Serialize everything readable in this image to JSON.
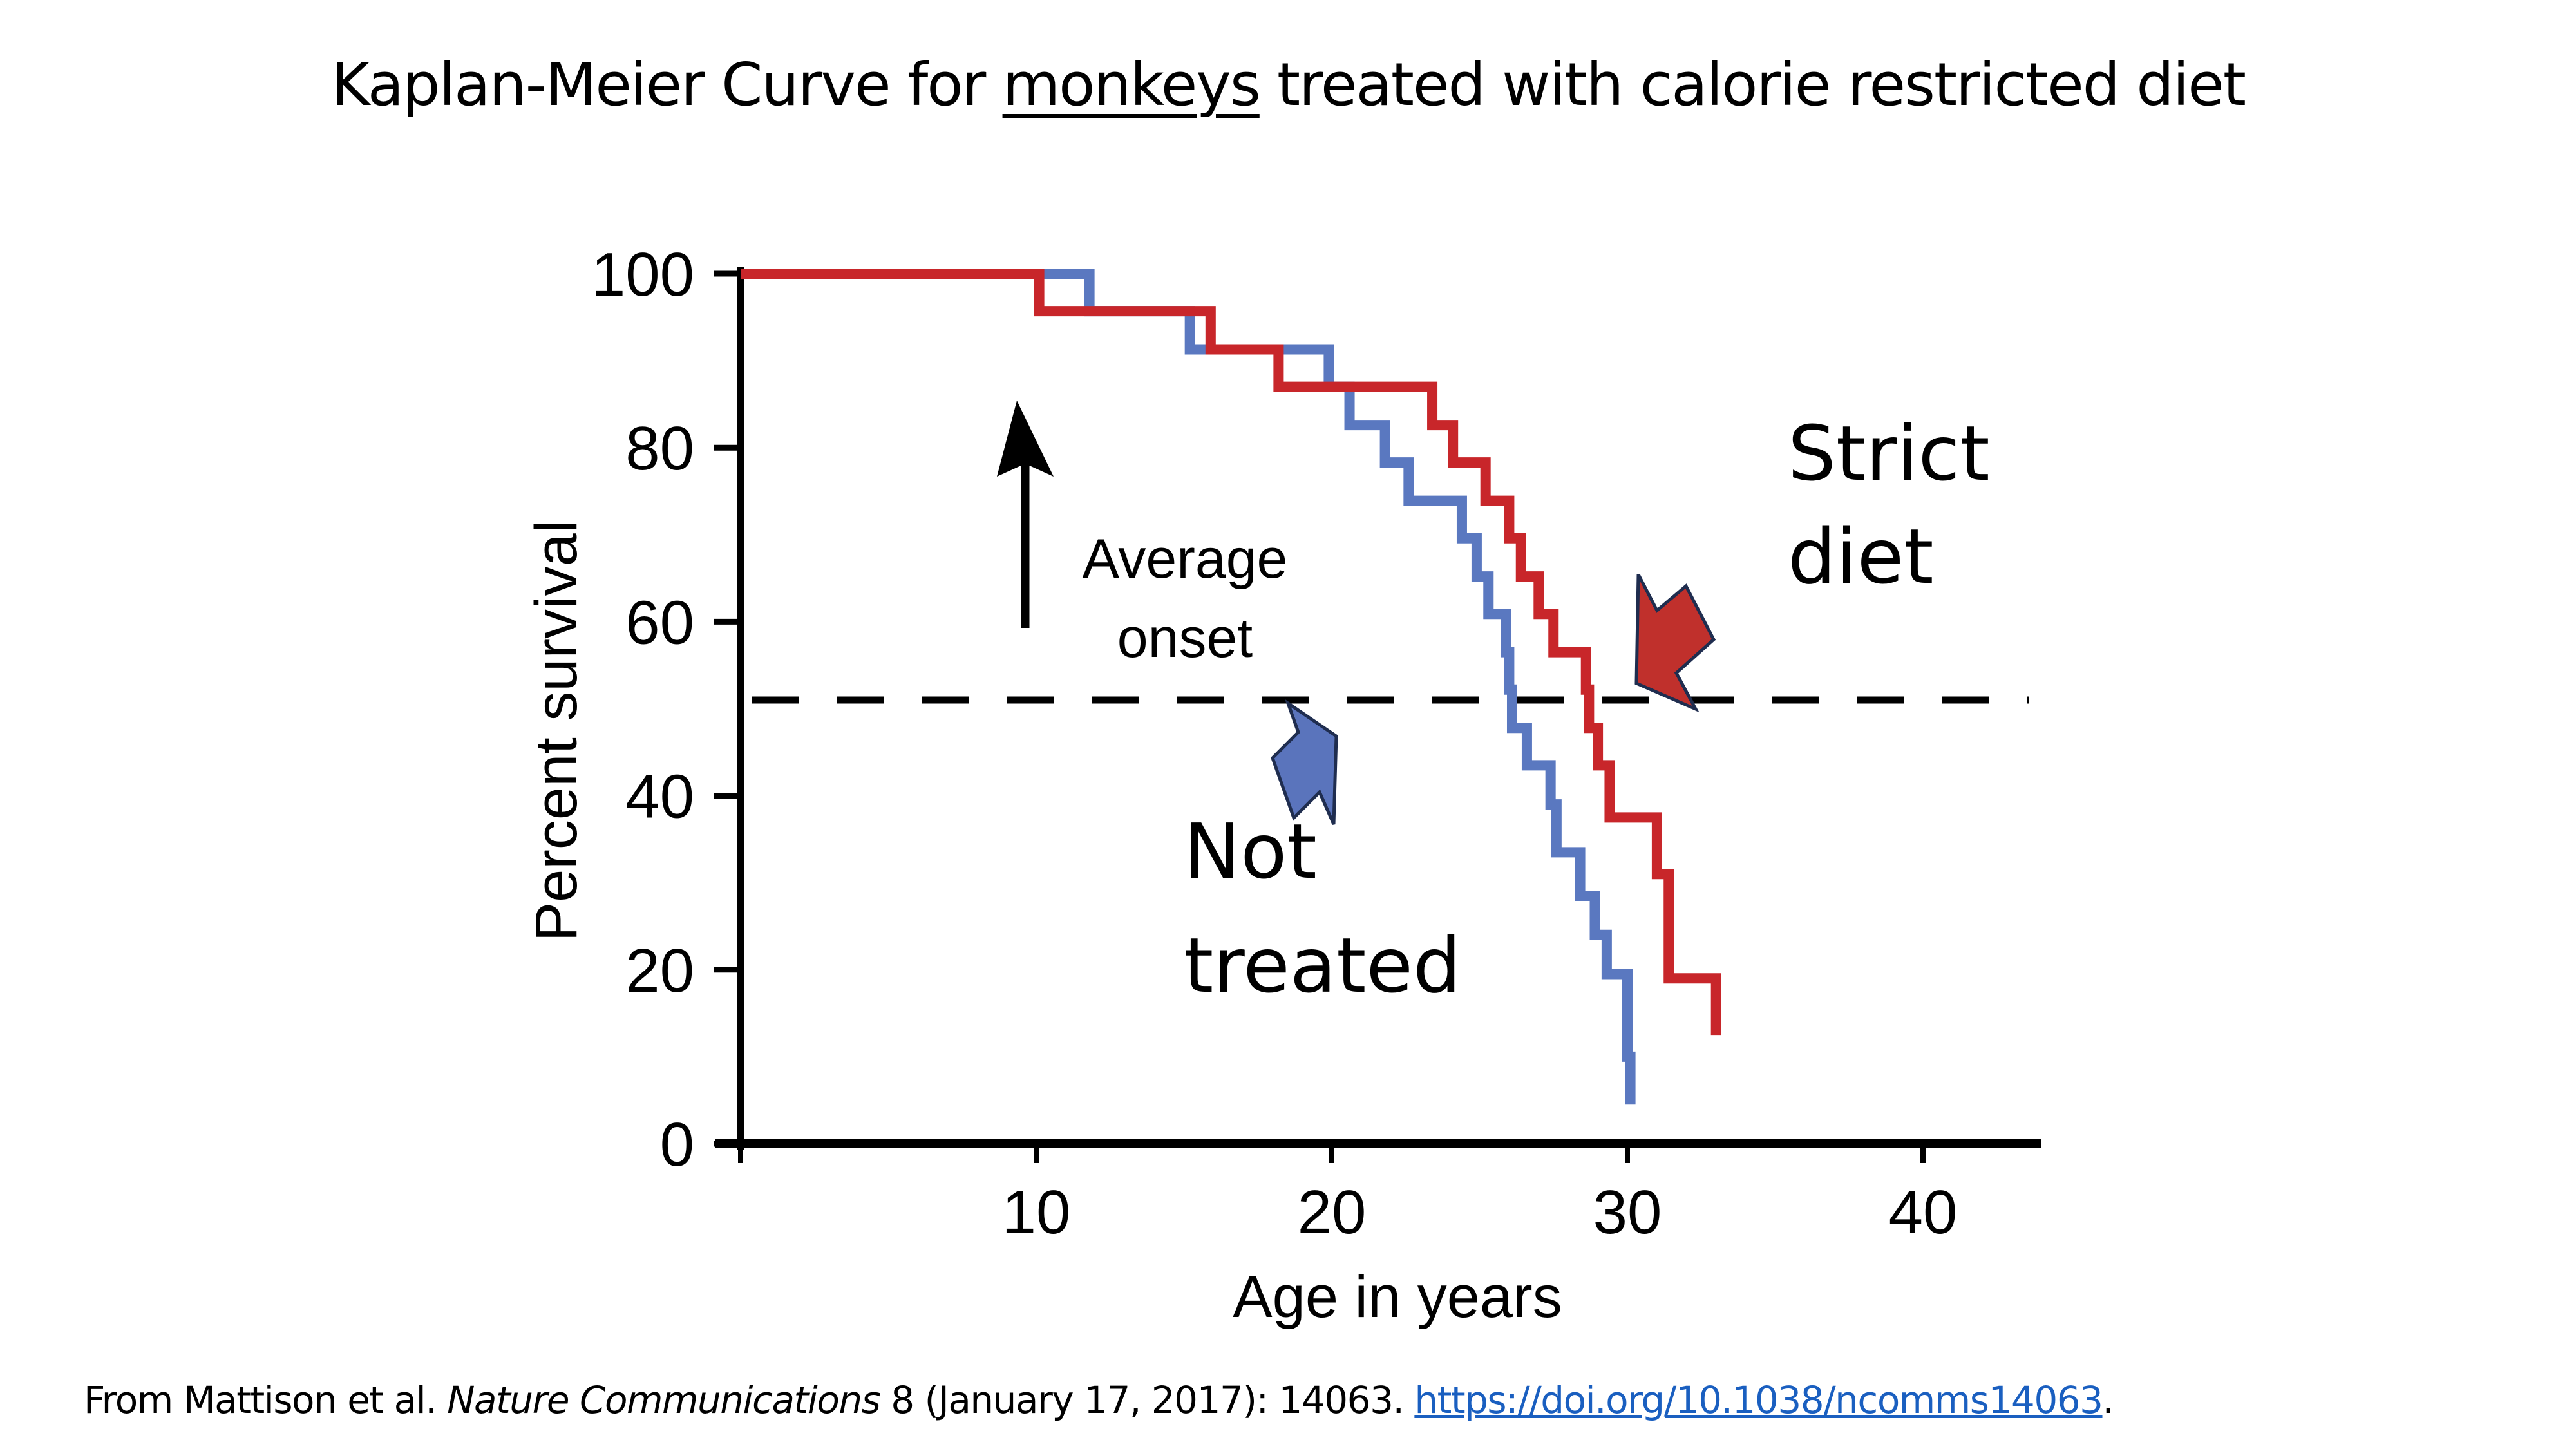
{
  "slide": {
    "title_prefix": "Kaplan-Meier Curve for ",
    "title_emphasis": "monkeys",
    "title_suffix": " treated with calorie restricted diet",
    "citation": {
      "prefix": "From Mattison et al. ",
      "journal": "Nature Communications",
      "details": " 8 (January 17, 2017): 14063. ",
      "link_text": "https://doi.org/10.1038/ncomms14063",
      "suffix": "."
    }
  },
  "chart_data": {
    "type": "line",
    "subtype": "step (Kaplan-Meier survival)",
    "title": "Kaplan-Meier Curve for monkeys treated with calorie restricted diet",
    "xlabel": "Age in years",
    "ylabel": "Percent survival",
    "xlim": [
      0,
      44
    ],
    "ylim": [
      0,
      100
    ],
    "xticks": [
      10,
      20,
      30,
      40
    ],
    "yticks": [
      0,
      20,
      40,
      60,
      80,
      100
    ],
    "grid": false,
    "colors": {
      "strict_diet": "#c8262a",
      "not_treated": "#5a78c0",
      "annotation_arrow_outline": "#1f2d4f"
    },
    "series": [
      {
        "name": "Strict diet",
        "color": "#c8262a",
        "steps": [
          [
            0,
            100
          ],
          [
            10.1,
            95.7
          ],
          [
            15.9,
            91.3
          ],
          [
            18.2,
            87.0
          ],
          [
            23.4,
            82.6
          ],
          [
            24.1,
            78.3
          ],
          [
            25.2,
            73.9
          ],
          [
            26.0,
            69.6
          ],
          [
            26.4,
            65.2
          ],
          [
            27.0,
            60.9
          ],
          [
            27.5,
            56.5
          ],
          [
            28.6,
            52.2
          ],
          [
            28.7,
            47.8
          ],
          [
            29.0,
            43.5
          ],
          [
            29.4,
            37.5
          ],
          [
            31.0,
            31.0
          ],
          [
            31.4,
            19.0
          ]
        ],
        "end": [
          33.0,
          12.5
        ]
      },
      {
        "name": "Not treated",
        "color": "#5a78c0",
        "steps": [
          [
            0,
            100
          ],
          [
            11.8,
            95.7
          ],
          [
            15.2,
            91.3
          ],
          [
            19.9,
            87.0
          ],
          [
            20.6,
            82.6
          ],
          [
            21.8,
            78.3
          ],
          [
            22.6,
            73.9
          ],
          [
            24.4,
            69.6
          ],
          [
            24.9,
            65.2
          ],
          [
            25.3,
            60.9
          ],
          [
            25.9,
            56.5
          ],
          [
            26.0,
            52.2
          ],
          [
            26.1,
            47.8
          ],
          [
            26.6,
            43.5
          ],
          [
            27.4,
            39.0
          ],
          [
            27.6,
            33.5
          ],
          [
            28.4,
            28.5
          ],
          [
            28.9,
            24.0
          ],
          [
            29.3,
            19.5
          ],
          [
            30.0,
            10.0
          ]
        ],
        "end": [
          30.1,
          4.5
        ]
      }
    ],
    "reference_line": {
      "y": 51,
      "style": "dashed",
      "label": "Average onset"
    },
    "annotations": [
      {
        "text_lines": [
          "Average",
          "onset"
        ],
        "type": "up-arrow"
      },
      {
        "text_lines": [
          "Strict",
          "diet"
        ],
        "type": "block-arrow",
        "color": "#c0302c"
      },
      {
        "text_lines": [
          "Not",
          "treated"
        ],
        "type": "block-arrow",
        "color": "#5a74bc"
      }
    ]
  }
}
